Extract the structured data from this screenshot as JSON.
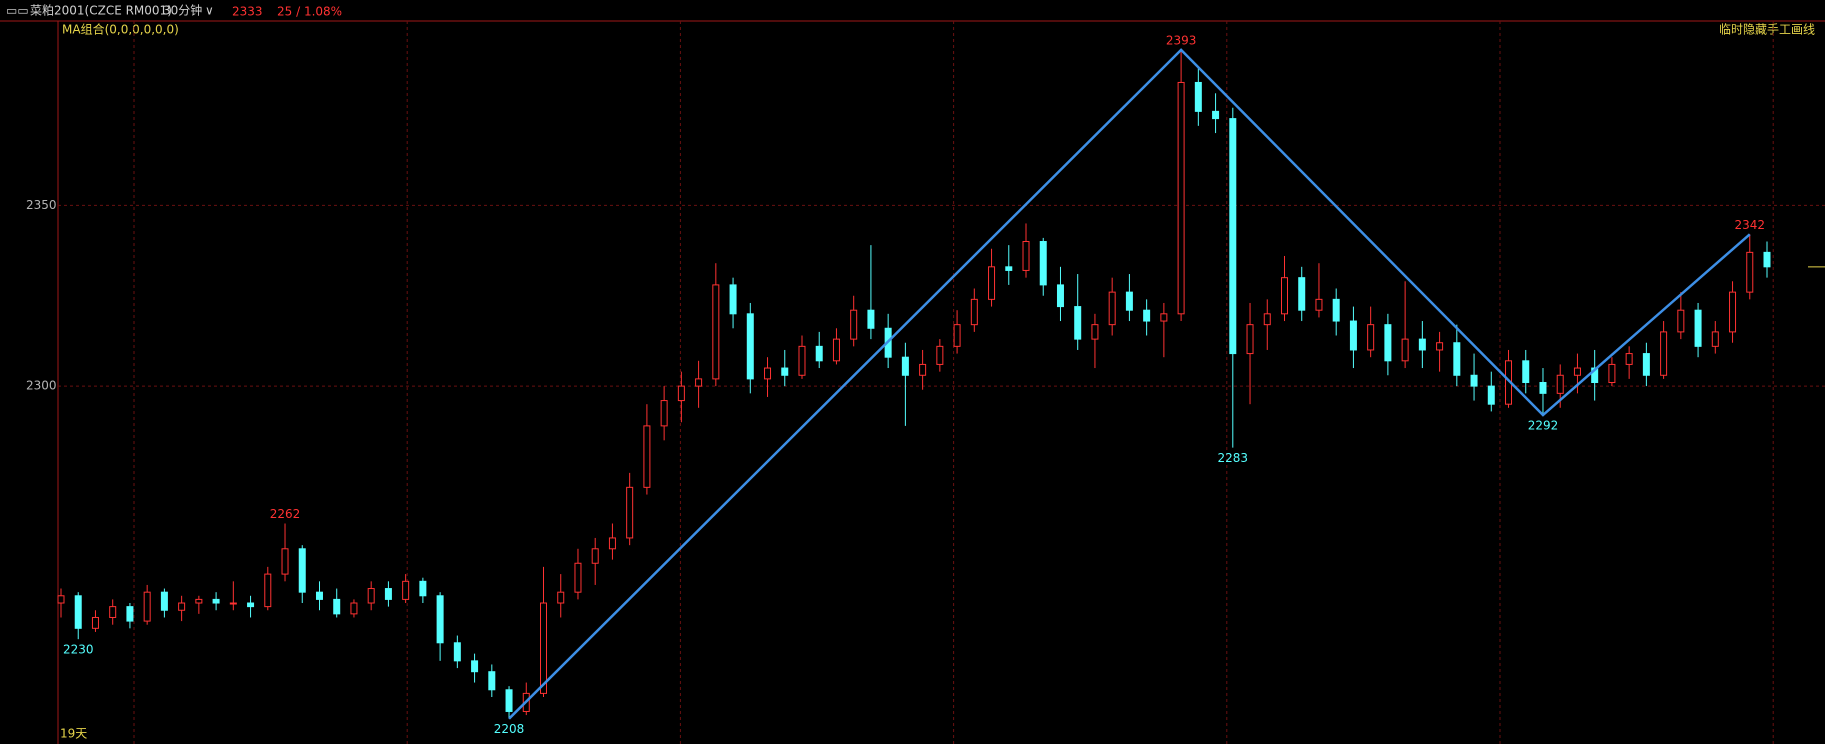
{
  "chart_data": {
    "type": "candlestick",
    "title": "菜粕2001(CZCE RM001)",
    "period": "30分钟",
    "last_price": 2333,
    "change_label": "25 / 1.08%",
    "indicator": "MA组合(0,0,0,0,0,0)",
    "toolbar_label": "临时隐藏手工画线",
    "range_label": "19天",
    "ylim": [
      2201,
      2401
    ],
    "yticks": [
      2300,
      2350
    ],
    "grid": true,
    "up_color": "#ff3232",
    "down_color": "#54ffff",
    "line_color": "#3d8fe6",
    "annotations": [
      2230,
      2262,
      2208,
      2393,
      2283,
      2292,
      2342
    ],
    "zigzag": [
      2208,
      2393,
      2292,
      2342
    ],
    "open": [
      2240,
      2242,
      2233,
      2236,
      2239,
      2235,
      2243,
      2238,
      2240,
      2241,
      2240,
      2240,
      2239,
      2248,
      2255,
      2243,
      2241,
      2237,
      2240,
      2244,
      2241,
      2246,
      2242,
      2229,
      2224,
      2221,
      2216,
      2210,
      2215,
      2240,
      2243,
      2251,
      2255,
      2258,
      2272,
      2289,
      2296,
      2300,
      2302,
      2328,
      2320,
      2302,
      2305,
      2303,
      2311,
      2307,
      2313,
      2321,
      2316,
      2308,
      2303,
      2306,
      2311,
      2317,
      2324,
      2333,
      2332,
      2340,
      2328,
      2322,
      2313,
      2317,
      2326,
      2321,
      2318,
      2320,
      2384,
      2376,
      2374,
      2309,
      2317,
      2320,
      2330,
      2321,
      2324,
      2318,
      2310,
      2317,
      2307,
      2313,
      2310,
      2312,
      2303,
      2300,
      2295,
      2307,
      2301,
      2298,
      2303,
      2305,
      2301,
      2306,
      2309,
      2303,
      2315,
      2321,
      2311,
      2315,
      2326,
      2337
    ],
    "high": [
      2244,
      2243,
      2238,
      2241,
      2240,
      2245,
      2244,
      2242,
      2242,
      2243,
      2246,
      2242,
      2250,
      2262,
      2256,
      2246,
      2244,
      2241,
      2246,
      2246,
      2248,
      2247,
      2243,
      2231,
      2226,
      2223,
      2217,
      2218,
      2250,
      2248,
      2255,
      2258,
      2262,
      2276,
      2295,
      2300,
      2304,
      2307,
      2334,
      2330,
      2323,
      2308,
      2310,
      2314,
      2315,
      2316,
      2325,
      2339,
      2320,
      2312,
      2310,
      2313,
      2321,
      2327,
      2338,
      2339,
      2345,
      2341,
      2333,
      2331,
      2320,
      2330,
      2331,
      2324,
      2323,
      2393,
      2388,
      2381,
      2377,
      2323,
      2324,
      2336,
      2333,
      2334,
      2327,
      2322,
      2322,
      2320,
      2329,
      2318,
      2315,
      2317,
      2309,
      2304,
      2310,
      2310,
      2305,
      2306,
      2309,
      2310,
      2308,
      2311,
      2312,
      2318,
      2326,
      2323,
      2318,
      2329,
      2342,
      2340
    ],
    "low": [
      2236,
      2230,
      2232,
      2234,
      2233,
      2234,
      2236,
      2235,
      2237,
      2238,
      2238,
      2236,
      2238,
      2246,
      2240,
      2238,
      2236,
      2236,
      2238,
      2239,
      2240,
      2240,
      2224,
      2222,
      2218,
      2214,
      2208,
      2209,
      2214,
      2236,
      2241,
      2245,
      2252,
      2256,
      2270,
      2285,
      2290,
      2294,
      2300,
      2316,
      2298,
      2297,
      2300,
      2302,
      2305,
      2306,
      2311,
      2313,
      2305,
      2289,
      2299,
      2304,
      2309,
      2315,
      2322,
      2328,
      2330,
      2325,
      2318,
      2310,
      2305,
      2314,
      2318,
      2314,
      2308,
      2318,
      2372,
      2370,
      2283,
      2295,
      2310,
      2318,
      2318,
      2319,
      2314,
      2305,
      2308,
      2303,
      2305,
      2305,
      2304,
      2300,
      2296,
      2293,
      2294,
      2298,
      2292,
      2294,
      2298,
      2296,
      2300,
      2302,
      2300,
      2302,
      2313,
      2308,
      2309,
      2312,
      2324,
      2330
    ],
    "close": [
      2242,
      2233,
      2236,
      2239,
      2235,
      2243,
      2238,
      2240,
      2241,
      2240,
      2240,
      2239,
      2248,
      2255,
      2243,
      2241,
      2237,
      2240,
      2244,
      2241,
      2246,
      2242,
      2229,
      2224,
      2221,
      2216,
      2210,
      2215,
      2240,
      2243,
      2251,
      2255,
      2258,
      2272,
      2289,
      2296,
      2300,
      2302,
      2328,
      2320,
      2302,
      2305,
      2303,
      2311,
      2307,
      2313,
      2321,
      2316,
      2308,
      2303,
      2306,
      2311,
      2317,
      2324,
      2333,
      2332,
      2340,
      2328,
      2322,
      2313,
      2317,
      2326,
      2321,
      2318,
      2320,
      2384,
      2376,
      2374,
      2309,
      2317,
      2320,
      2330,
      2321,
      2324,
      2318,
      2310,
      2317,
      2307,
      2313,
      2310,
      2312,
      2303,
      2300,
      2295,
      2307,
      2301,
      2298,
      2303,
      2305,
      2301,
      2306,
      2309,
      2303,
      2315,
      2321,
      2311,
      2315,
      2326,
      2337,
      2333
    ]
  }
}
